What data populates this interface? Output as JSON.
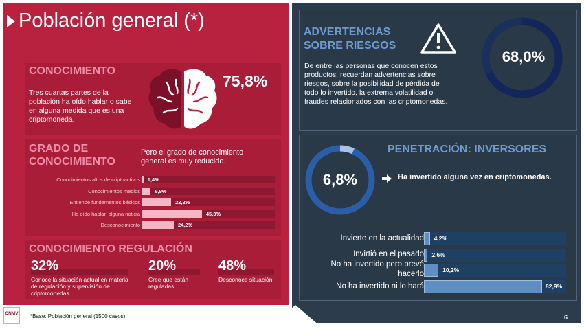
{
  "slide": {
    "title": "Población general (*)",
    "base_note": "*Base: Población general (1500 casos)",
    "page_number": "6",
    "logo_text": "CNMV"
  },
  "conocimiento": {
    "heading": "CONOCIMIENTO",
    "text": "Tres cuartas partes de la población ha oído hablar o sabe en alguna medida que es una criptomoneda.",
    "value": "75,8%"
  },
  "grado": {
    "heading_line1": "GRADO DE",
    "heading_line2": "CONOCIMIENTO",
    "text": "Pero el grado de conocimiento general es muy reducido.",
    "bars": [
      {
        "label": "Conocimientos altos de criptoactivos",
        "value": 1.4,
        "display": "1,4%"
      },
      {
        "label": "Conocimientos medios",
        "value": 6.9,
        "display": "6,9%"
      },
      {
        "label": "Entiende fundamentos básicos",
        "value": 22.2,
        "display": "22,2%"
      },
      {
        "label": "Ha oído hablar, alguna noticia",
        "value": 45.3,
        "display": "45,3%"
      },
      {
        "label": "Desconocimiento",
        "value": 24.2,
        "display": "24,2%"
      }
    ]
  },
  "regulacion": {
    "heading": "CONOCIMIENTO REGULACIÓN",
    "items": [
      {
        "value": "32%",
        "text": "Conoce la situación actual en materia de regulación y supervisión de criptomonedas"
      },
      {
        "value": "20%",
        "text": "Cree que están reguladas"
      },
      {
        "value": "48%",
        "text": "Desconoce situación"
      }
    ]
  },
  "advertencias": {
    "heading_line1": "ADVERTENCIAS",
    "heading_line2": "SOBRE RIESGOS",
    "text": "De entre las personas que conocen estos productos, recuerdan advertencias sobre riesgos, sobre la posibilidad de pérdida de todo lo invertido, la extrema volatilidad o fraudes relacionados con las criptomonedas.",
    "value": "68,0%",
    "fraction": 0.68
  },
  "penetracion": {
    "heading": "PENETRACIÓN: INVERSORES",
    "value": "6,8%",
    "fraction": 0.068,
    "caption": "Ha invertido alguna vez en criptomonedas.",
    "bars": [
      {
        "label": "Invierte en la actualidad",
        "value": 4.2,
        "display": "4,2%"
      },
      {
        "label": "Invirtió en el pasado",
        "value": 2.6,
        "display": "2,6%"
      },
      {
        "label": "No ha invertido pero prevé hacerlo",
        "value": 10.2,
        "display": "10,2%"
      },
      {
        "label": "No ha invertido ni lo hará",
        "value": 82.9,
        "display": "82,9%"
      }
    ]
  },
  "colors": {
    "left_bg": "#b9223f",
    "right_bg": "#2d3c4c",
    "accent_pink": "#f18eaa",
    "accent_blue": "#6e9bd0"
  }
}
